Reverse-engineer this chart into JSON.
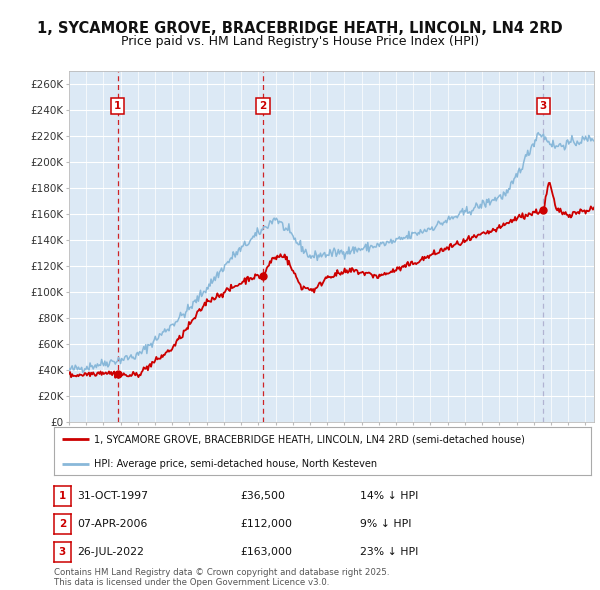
{
  "title": "1, SYCAMORE GROVE, BRACEBRIDGE HEATH, LINCOLN, LN4 2RD",
  "subtitle": "Price paid vs. HM Land Registry's House Price Index (HPI)",
  "title_fontsize": 10.5,
  "subtitle_fontsize": 9,
  "ylim": [
    0,
    270000
  ],
  "yticks": [
    0,
    20000,
    40000,
    60000,
    80000,
    100000,
    120000,
    140000,
    160000,
    180000,
    200000,
    220000,
    240000,
    260000
  ],
  "ytick_labels": [
    "£0",
    "£20K",
    "£40K",
    "£60K",
    "£80K",
    "£100K",
    "£120K",
    "£140K",
    "£160K",
    "£180K",
    "£200K",
    "£220K",
    "£240K",
    "£260K"
  ],
  "plot_bg_color": "#dce9f5",
  "grid_color": "#ffffff",
  "outer_bg": "#ffffff",
  "red_line_color": "#cc0000",
  "blue_line_color": "#89b8d9",
  "vline_color_red": "#cc0000",
  "vline_color_blue": "#aaaacc",
  "transactions": [
    {
      "date_num": 1997.83,
      "price": 36500,
      "label": "1",
      "vline_style": "red"
    },
    {
      "date_num": 2006.27,
      "price": 112000,
      "label": "2",
      "vline_style": "red"
    },
    {
      "date_num": 2022.56,
      "price": 163000,
      "label": "3",
      "vline_style": "blue"
    }
  ],
  "legend_line1": "1, SYCAMORE GROVE, BRACEBRIDGE HEATH, LINCOLN, LN4 2RD (semi-detached house)",
  "legend_line2": "HPI: Average price, semi-detached house, North Kesteven",
  "footer": "Contains HM Land Registry data © Crown copyright and database right 2025.\nThis data is licensed under the Open Government Licence v3.0.",
  "table_rows": [
    [
      "1",
      "31-OCT-1997",
      "£36,500",
      "14% ↓ HPI"
    ],
    [
      "2",
      "07-APR-2006",
      "£112,000",
      "9% ↓ HPI"
    ],
    [
      "3",
      "26-JUL-2022",
      "£163,000",
      "23% ↓ HPI"
    ]
  ]
}
